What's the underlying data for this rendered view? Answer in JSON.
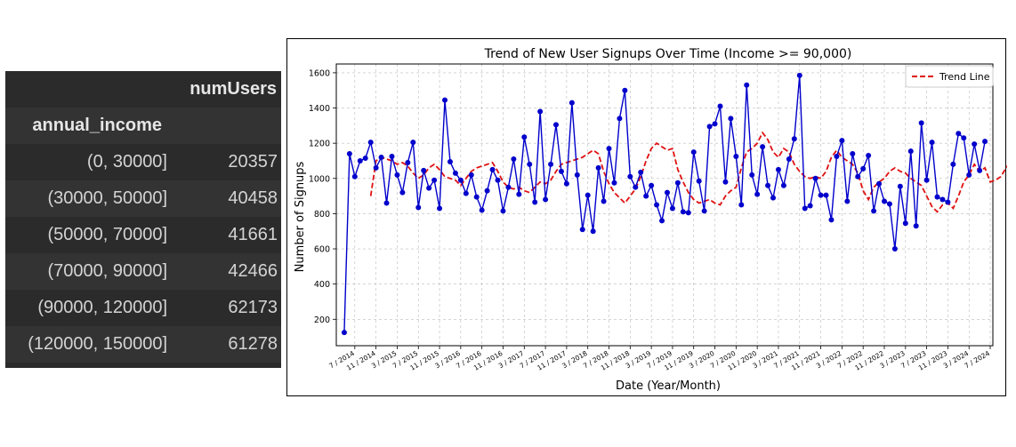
{
  "table": {
    "column_header": "numUsers",
    "index_header": "annual_income",
    "rows": [
      {
        "index": "(0, 30000]",
        "value": "20357"
      },
      {
        "index": "(30000, 50000]",
        "value": "40458"
      },
      {
        "index": "(50000, 70000]",
        "value": "41661"
      },
      {
        "index": "(70000, 90000]",
        "value": "42466"
      },
      {
        "index": "(90000, 120000]",
        "value": "62173"
      },
      {
        "index": "(120000, 150000]",
        "value": "61278"
      }
    ]
  },
  "chart_data": {
    "type": "line",
    "title": "Trend of New User Signups Over Time (Income >= 90,000)",
    "xlabel": "Date (Year/Month)",
    "ylabel": "Number of Signups",
    "ylim": [
      50,
      1650
    ],
    "yticks": [
      200,
      400,
      600,
      800,
      1000,
      1200,
      1400,
      1600
    ],
    "xticks": [
      "7 / 2014",
      "11 / 2014",
      "3 / 2015",
      "7 / 2015",
      "11 / 2015",
      "3 / 2016",
      "7 / 2016",
      "11 / 2016",
      "3 / 2017",
      "7 / 2017",
      "11 / 2017",
      "3 / 2018",
      "7 / 2018",
      "11 / 2018",
      "3 / 2019",
      "7 / 2019",
      "11 / 2019",
      "3 / 2020",
      "7 / 2020",
      "11 / 2020",
      "3 / 2021",
      "7 / 2021",
      "11 / 2021",
      "3 / 2022",
      "7 / 2022",
      "11 / 2022",
      "3 / 2023",
      "7 / 2023",
      "11 / 2023",
      "3 / 2024",
      "7 / 2024"
    ],
    "grid": true,
    "legend_position": "top-right",
    "colors": {
      "signups": "#0000cc",
      "trend": "#e01010"
    },
    "series": [
      {
        "name": "",
        "style": "solid-with-markers",
        "x_start": "2014-05",
        "values": [
          125,
          1140,
          1010,
          1100,
          1115,
          1205,
          1060,
          1120,
          860,
          1125,
          1020,
          920,
          1090,
          1205,
          835,
          1045,
          945,
          990,
          830,
          1445,
          1095,
          1030,
          990,
          915,
          1020,
          895,
          820,
          930,
          1050,
          990,
          815,
          950,
          1110,
          910,
          1235,
          1080,
          865,
          1380,
          880,
          1080,
          1305,
          1040,
          970,
          1430,
          1020,
          710,
          905,
          700,
          1060,
          870,
          1170,
          975,
          1340,
          1500,
          1010,
          950,
          1035,
          900,
          960,
          850,
          760,
          920,
          830,
          975,
          810,
          805,
          1150,
          985,
          815,
          1295,
          1310,
          1410,
          980,
          1340,
          1125,
          850,
          1530,
          1020,
          910,
          1180,
          960,
          890,
          1050,
          960,
          1110,
          1225,
          1585,
          830,
          845,
          1000,
          905,
          905,
          765,
          1125,
          1215,
          870,
          1140,
          1010,
          1055,
          1130,
          815,
          970,
          870,
          855,
          600,
          955,
          745,
          1155,
          730,
          1315,
          990,
          1205,
          895,
          880,
          865,
          1080,
          1255,
          1230,
          1020,
          1195,
          1045,
          1210
        ]
      },
      {
        "name": "Trend Line",
        "style": "dashed",
        "x_start": "2014-10",
        "values": [
          900,
          1100,
          1120,
          1110,
          1100,
          1080,
          1090,
          1070,
          1030,
          1000,
          1020,
          1060,
          1080,
          1050,
          1010,
          1000,
          990,
          960,
          1000,
          1040,
          1060,
          1070,
          1080,
          1090,
          1040,
          980,
          950,
          940,
          950,
          930,
          920,
          950,
          980,
          970,
          990,
          1040,
          1080,
          1090,
          1100,
          1110,
          1120,
          1140,
          1160,
          1140,
          1040,
          970,
          920,
          890,
          860,
          900,
          940,
          1010,
          1100,
          1170,
          1200,
          1180,
          1160,
          1170,
          1050,
          980,
          920,
          880,
          860,
          870,
          880,
          860,
          850,
          900,
          930,
          950,
          1060,
          1150,
          1170,
          1200,
          1260,
          1220,
          1150,
          1120,
          1170,
          1150,
          1080,
          1040,
          1010,
          1000,
          1010,
          1000,
          1040,
          1120,
          1160,
          1120,
          1100,
          1080,
          1030,
          930,
          880,
          950,
          980,
          1000,
          1040,
          1060,
          1040,
          1030,
          1000,
          980,
          960,
          900,
          840,
          810,
          850,
          860,
          830,
          900,
          980,
          1020,
          1080,
          1040,
          1060,
          980,
          990,
          1010,
          1060,
          1100,
          1160,
          1130,
          1150
        ]
      }
    ]
  }
}
